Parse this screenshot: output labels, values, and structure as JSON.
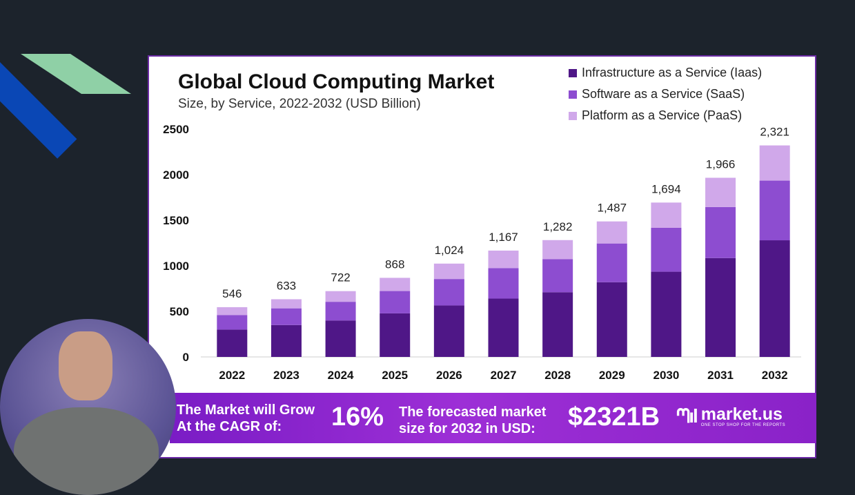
{
  "chart_data": {
    "type": "bar",
    "stacked": true,
    "title": "Global Cloud Computing Market",
    "subtitle": "Size, by Service, 2022-2032 (USD Billion)",
    "categories": [
      "2022",
      "2023",
      "2024",
      "2025",
      "2026",
      "2027",
      "2028",
      "2029",
      "2030",
      "2031",
      "2032"
    ],
    "totals": [
      546,
      633,
      722,
      868,
      1024,
      1167,
      1282,
      1487,
      1694,
      1966,
      2321
    ],
    "total_labels": [
      "546",
      "633",
      "722",
      "868",
      "1,024",
      "1,167",
      "1,282",
      "1,487",
      "1,694",
      "1,966",
      "2,321"
    ],
    "series": [
      {
        "name": "Infrastructure as a Service (Iaas)",
        "color": "#4f1787",
        "values": [
          300,
          350,
          400,
          478,
          565,
          640,
          710,
          820,
          935,
          1085,
          1280
        ]
      },
      {
        "name": "Software as a Service (SaaS)",
        "color": "#8d4dd0",
        "values": [
          160,
          183,
          205,
          245,
          290,
          335,
          362,
          425,
          482,
          560,
          655
        ]
      },
      {
        "name": "Platform as a Service (PaaS)",
        "color": "#d0a8ea",
        "values": [
          86,
          100,
          117,
          145,
          169,
          192,
          210,
          242,
          277,
          321,
          386
        ]
      }
    ],
    "ylim": [
      0,
      2500
    ],
    "yticks": [
      0,
      500,
      1000,
      1500,
      2000,
      2500
    ],
    "legend_position": "top-right"
  },
  "banner": {
    "cagr_text_line1": "The Market will Grow",
    "cagr_text_line2": "At the CAGR of:",
    "cagr_value": "16%",
    "forecast_text_line1": "The forecasted market",
    "forecast_text_line2": "size for 2032 in USD:",
    "forecast_value": "$2321B",
    "logo_name": "market.us",
    "logo_tagline": "ONE STOP SHOP FOR THE REPORTS"
  }
}
